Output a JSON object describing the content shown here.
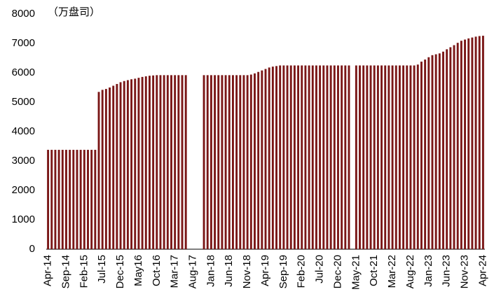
{
  "chart_data": {
    "type": "bar",
    "unit_label": "（万盘司）",
    "color": "#7a1616",
    "ylim": [
      0,
      8000
    ],
    "yticks": [
      0,
      1000,
      2000,
      3000,
      4000,
      5000,
      6000,
      7000,
      8000
    ],
    "categories": [
      "Apr-14",
      null,
      null,
      null,
      null,
      "Sep-14",
      null,
      null,
      null,
      null,
      "Feb-15",
      null,
      null,
      null,
      null,
      "Jul-15",
      null,
      null,
      null,
      null,
      "Dec-15",
      null,
      null,
      null,
      null,
      "May16",
      null,
      null,
      null,
      null,
      "Oct-16",
      null,
      null,
      null,
      null,
      "Mar-17",
      null,
      null,
      null,
      null,
      "Aug-17",
      null,
      null,
      null,
      null,
      "Jan-18",
      null,
      null,
      null,
      null,
      "Jun-18",
      null,
      null,
      null,
      null,
      "Nov-18",
      null,
      null,
      null,
      null,
      "Apr-19",
      null,
      null,
      null,
      null,
      "Sep-19",
      null,
      null,
      null,
      null,
      "Feb-20",
      null,
      null,
      null,
      null,
      "Jul-20",
      null,
      null,
      null,
      null,
      "Dec-20",
      null,
      null,
      null,
      null,
      "May-21",
      null,
      null,
      null,
      null,
      "Oct-21",
      null,
      null,
      null,
      null,
      "Mar-22",
      null,
      null,
      null,
      null,
      "Aug-22",
      null,
      null,
      null,
      null,
      "Jan-23",
      null,
      null,
      null,
      null,
      "Jun-23",
      null,
      null,
      null,
      null,
      "Nov-23",
      null,
      null,
      null,
      null,
      "Apr-24"
    ],
    "values": [
      3380,
      3380,
      3380,
      3380,
      3380,
      3380,
      3380,
      3380,
      3380,
      3380,
      3380,
      3380,
      3380,
      3380,
      5350,
      5420,
      5450,
      5500,
      5560,
      5620,
      5680,
      5720,
      5750,
      5780,
      5800,
      5830,
      5860,
      5880,
      5900,
      5910,
      5920,
      5920,
      5920,
      5920,
      5920,
      5920,
      5920,
      5920,
      5920,
      null,
      null,
      null,
      null,
      5920,
      5920,
      5920,
      5920,
      5920,
      5920,
      5920,
      5920,
      5920,
      5920,
      5920,
      5920,
      5920,
      5940,
      5980,
      6030,
      6080,
      6130,
      6180,
      6210,
      6230,
      6250,
      6250,
      6250,
      6250,
      6250,
      6250,
      6250,
      6250,
      6250,
      6250,
      6250,
      6250,
      6250,
      6250,
      6250,
      6250,
      6250,
      6250,
      6250,
      6250,
      null,
      6250,
      6250,
      6250,
      6250,
      6250,
      6250,
      6250,
      6250,
      6250,
      6250,
      6250,
      6250,
      6250,
      6250,
      6250,
      6250,
      6250,
      6280,
      6380,
      6450,
      6530,
      6600,
      6630,
      6660,
      6720,
      6800,
      6870,
      6940,
      7020,
      7090,
      7130,
      7170,
      7200,
      7230,
      7250,
      7260
    ]
  }
}
